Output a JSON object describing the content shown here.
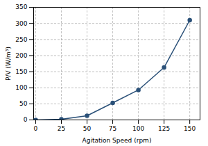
{
  "chart_data": {
    "type": "line",
    "x": [
      0,
      25,
      50,
      75,
      100,
      125,
      150
    ],
    "values": [
      0,
      2,
      13,
      53,
      93,
      163,
      310
    ],
    "color": "#2a5078",
    "marker": "circle",
    "xlabel": "Agitation Speed (rpm)",
    "ylabel": "P/V (W/m³)",
    "xlim": [
      -2,
      160
    ],
    "ylim": [
      0,
      350
    ],
    "xticks": [
      0,
      25,
      50,
      75,
      100,
      125,
      150
    ],
    "yticks": [
      0,
      50,
      100,
      150,
      200,
      250,
      300,
      350
    ],
    "grid": true
  }
}
